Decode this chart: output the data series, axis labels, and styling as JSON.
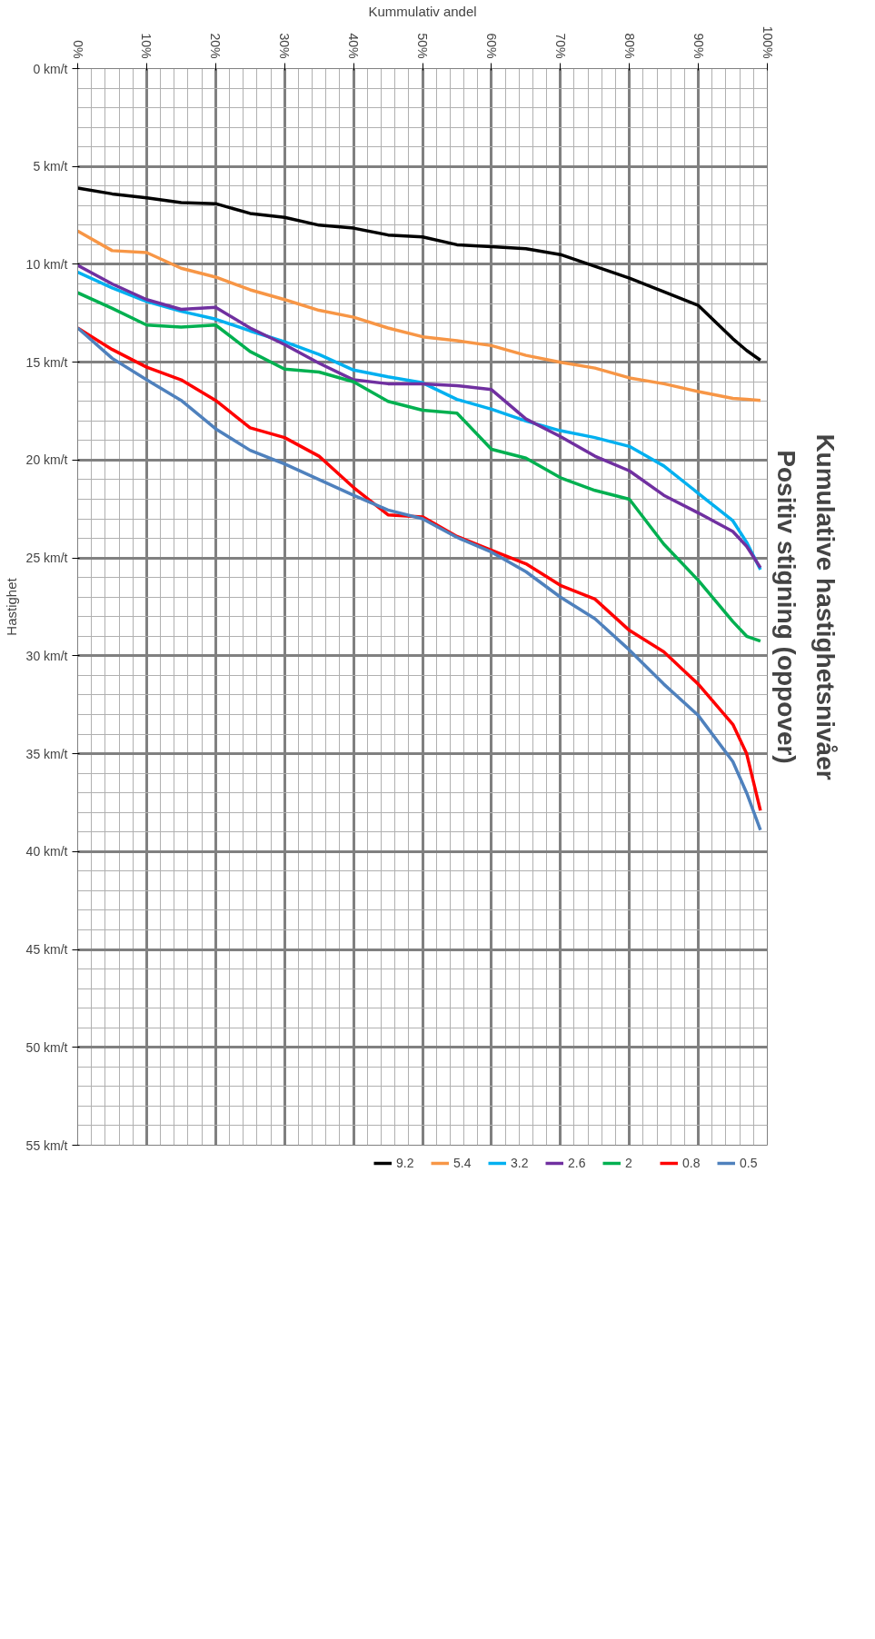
{
  "chart_data": {
    "type": "line",
    "title": "Kumulative hastighetsnivåer",
    "subtitle": "Positiv stigning (oppover)",
    "xlabel": "Kummulativ andel",
    "ylabel": "Hastighet",
    "x": [
      0,
      5,
      10,
      15,
      20,
      25,
      30,
      35,
      40,
      45,
      50,
      55,
      60,
      65,
      70,
      75,
      80,
      85,
      90,
      95,
      97,
      99
    ],
    "series": [
      {
        "name": "9.2",
        "color": "#000000",
        "values": [
          6.1,
          6.4,
          6.6,
          6.85,
          6.9,
          7.4,
          7.6,
          8.0,
          8.15,
          8.5,
          8.6,
          9.0,
          9.1,
          9.2,
          9.5,
          10.1,
          10.7,
          11.4,
          12.1,
          13.8,
          14.4,
          14.9
        ]
      },
      {
        "name": "5.4",
        "color": "#f79646",
        "values": [
          8.3,
          9.3,
          9.4,
          10.2,
          10.65,
          11.3,
          11.8,
          12.35,
          12.7,
          13.25,
          13.7,
          13.9,
          14.15,
          14.65,
          15.0,
          15.3,
          15.8,
          16.1,
          16.5,
          16.85,
          16.9,
          16.95
        ]
      },
      {
        "name": "3.2",
        "color": "#00b0f0",
        "values": [
          10.4,
          11.2,
          11.9,
          12.4,
          12.8,
          13.4,
          13.95,
          14.6,
          15.4,
          15.75,
          16.05,
          16.9,
          17.4,
          18.0,
          18.5,
          18.85,
          19.3,
          20.3,
          21.7,
          23.1,
          24.2,
          25.6
        ]
      },
      {
        "name": "2.6",
        "color": "#7030a0",
        "values": [
          10.05,
          11.0,
          11.8,
          12.3,
          12.2,
          13.25,
          14.1,
          15.05,
          15.9,
          16.1,
          16.1,
          16.2,
          16.4,
          17.9,
          18.8,
          19.8,
          20.55,
          21.8,
          22.7,
          23.65,
          24.4,
          25.5
        ]
      },
      {
        "name": "2",
        "color": "#00b050",
        "values": [
          11.45,
          12.25,
          13.1,
          13.2,
          13.1,
          14.45,
          15.35,
          15.5,
          16.0,
          17.0,
          17.45,
          17.6,
          19.45,
          19.9,
          20.9,
          21.55,
          22.0,
          24.3,
          26.15,
          28.25,
          29.0,
          29.25
        ]
      },
      {
        "name": "0.8",
        "color": "#ff0000",
        "values": [
          13.25,
          14.35,
          15.25,
          15.9,
          16.95,
          18.35,
          18.85,
          19.8,
          21.4,
          22.8,
          22.9,
          23.9,
          24.6,
          25.3,
          26.4,
          27.1,
          28.7,
          29.8,
          31.45,
          33.5,
          35.0,
          37.9
        ]
      },
      {
        "name": "0.5",
        "color": "#4f81bd",
        "values": [
          13.25,
          14.8,
          15.9,
          16.95,
          18.4,
          19.5,
          20.2,
          21.0,
          21.8,
          22.55,
          23.0,
          23.95,
          24.7,
          25.7,
          27.0,
          28.1,
          29.7,
          31.45,
          33.05,
          35.4,
          37.0,
          38.9
        ]
      }
    ],
    "xlim": [
      0,
      100
    ],
    "ylim": [
      55,
      0
    ],
    "xticks": [
      {
        "value": 0,
        "label": "0%"
      },
      {
        "value": 10,
        "label": "10%"
      },
      {
        "value": 20,
        "label": "20%"
      },
      {
        "value": 30,
        "label": "30%"
      },
      {
        "value": 40,
        "label": "40%"
      },
      {
        "value": 50,
        "label": "50%"
      },
      {
        "value": 60,
        "label": "60%"
      },
      {
        "value": 70,
        "label": "70%"
      },
      {
        "value": 80,
        "label": "80%"
      },
      {
        "value": 90,
        "label": "90%"
      },
      {
        "value": 100,
        "label": "100%"
      }
    ],
    "yticks": [
      {
        "value": 0,
        "label": "0 km/t"
      },
      {
        "value": 5,
        "label": "5 km/t"
      },
      {
        "value": 10,
        "label": "10 km/t"
      },
      {
        "value": 15,
        "label": "15 km/t"
      },
      {
        "value": 20,
        "label": "20 km/t"
      },
      {
        "value": 25,
        "label": "25 km/t"
      },
      {
        "value": 30,
        "label": "30 km/t"
      },
      {
        "value": 35,
        "label": "35 km/t"
      },
      {
        "value": 40,
        "label": "40 km/t"
      },
      {
        "value": 45,
        "label": "45 km/t"
      },
      {
        "value": 50,
        "label": "50 km/t"
      },
      {
        "value": 55,
        "label": "55 km/t"
      }
    ],
    "grid": true,
    "legend": "bottom",
    "marker": "none",
    "line_style": "solid"
  }
}
